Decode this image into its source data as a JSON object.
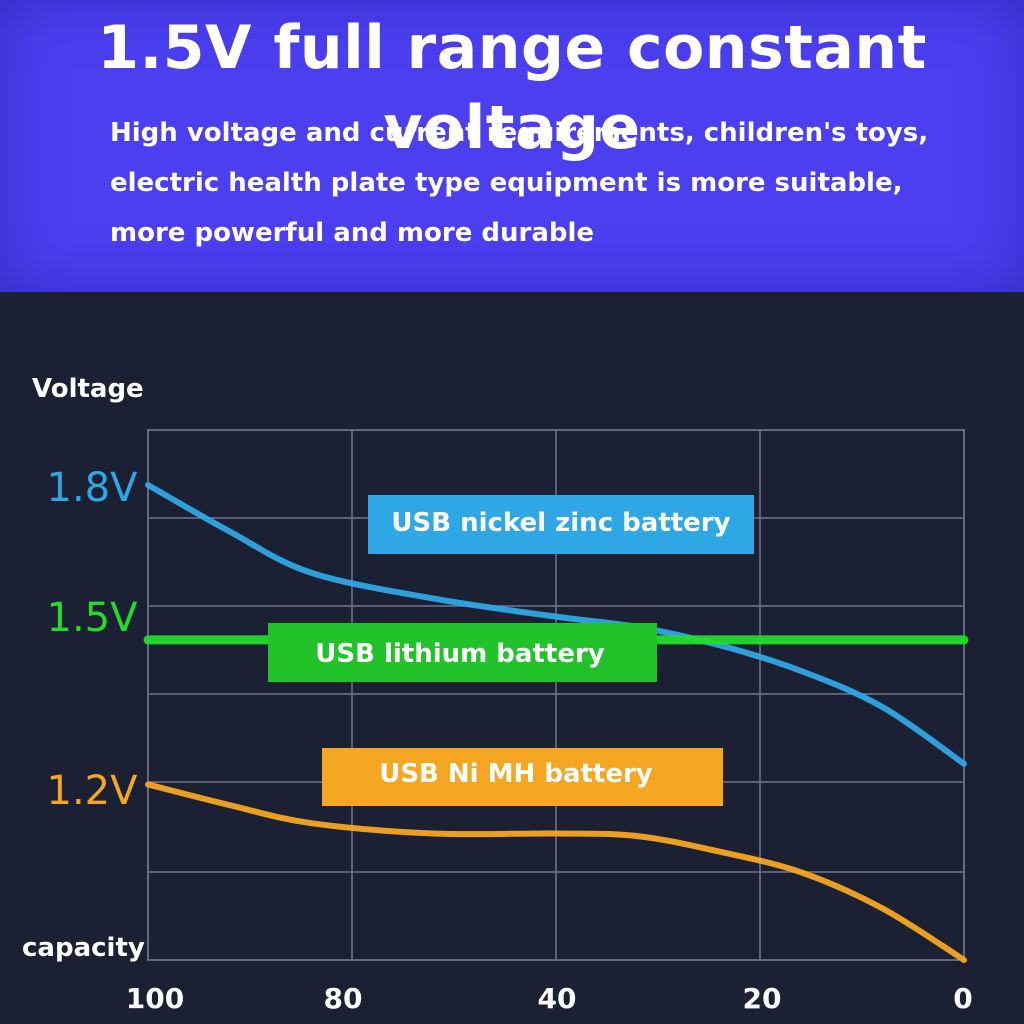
{
  "banner": {
    "title": "1.5V full range constant voltage",
    "lines": [
      "High voltage and current requirements, children's toys,",
      "electric health plate type equipment is more suitable,",
      "more powerful and more durable"
    ]
  },
  "colors": {
    "banner_bg": "#4b3ff0",
    "chart_bg": "#1b2133",
    "nickel_zinc": "#2fa7e4",
    "lithium": "#22dc2c",
    "ni_mh": "#f5a623"
  },
  "chart_data": {
    "type": "line",
    "ylabel": "Voltage",
    "xlabel": "capacity",
    "x_ticks": [
      "100",
      "80",
      "40",
      "20",
      "0"
    ],
    "y_ticks": [
      "1.8V",
      "1.5V",
      "1.2V"
    ],
    "grid": true,
    "series": [
      {
        "name": "USB nickel zinc battery",
        "color": "#2fa7e4",
        "points": [
          [
            100,
            1.8
          ],
          [
            90,
            1.71
          ],
          [
            80,
            1.63
          ],
          [
            65,
            1.58
          ],
          [
            50,
            1.545
          ],
          [
            40,
            1.525
          ],
          [
            30,
            1.49
          ],
          [
            20,
            1.44
          ],
          [
            10,
            1.37
          ],
          [
            0,
            1.26
          ]
        ]
      },
      {
        "name": "USB lithium battery",
        "color": "#22dc2c",
        "points": [
          [
            100,
            1.5
          ],
          [
            0,
            1.5
          ]
        ]
      },
      {
        "name": "USB Ni MH battery",
        "color": "#f5a623",
        "points": [
          [
            100,
            1.22
          ],
          [
            90,
            1.18
          ],
          [
            80,
            1.145
          ],
          [
            65,
            1.125
          ],
          [
            50,
            1.125
          ],
          [
            40,
            1.12
          ],
          [
            30,
            1.09
          ],
          [
            20,
            1.05
          ],
          [
            10,
            0.98
          ],
          [
            0,
            0.88
          ]
        ]
      }
    ]
  }
}
